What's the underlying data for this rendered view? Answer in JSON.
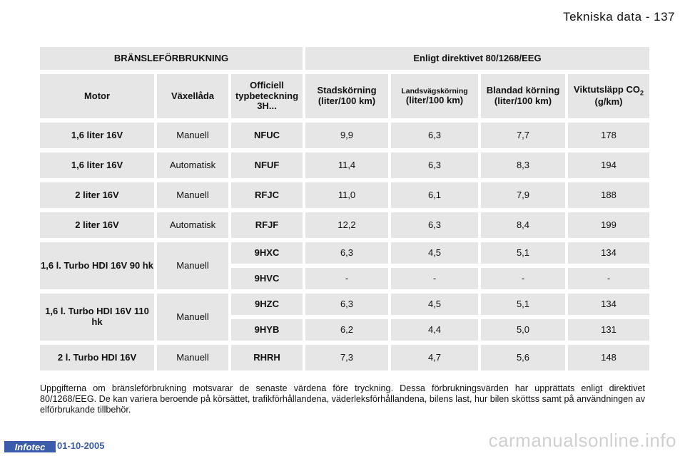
{
  "header": {
    "title": "Tekniska data - 137"
  },
  "table": {
    "top_headers": [
      "BRÄNSLEFÖRBRUKNING",
      "Enligt direktivet 80/1268/EEG"
    ],
    "col_headers": {
      "motor": "Motor",
      "gearbox": "Växellåda",
      "type_code": "Officiell typbeteckning 3H...",
      "city": "Stadskörning (liter/100 km)",
      "highway_a": "Landsvägskörning",
      "highway_b": "(liter/100 km)",
      "mixed": "Blandad körning (liter/100 km)",
      "co2_a": "Viktutsläpp CO",
      "co2_sub": "2",
      "co2_b": "(g/km)"
    },
    "rows": [
      {
        "motor": "1,6 liter 16V",
        "gearbox": "Manuell",
        "code": "NFUC",
        "city": "9,9",
        "highway": "6,3",
        "mixed": "7,7",
        "co2": "178"
      },
      {
        "motor": "1,6 liter 16V",
        "gearbox": "Automatisk",
        "code": "NFUF",
        "city": "11,4",
        "highway": "6,3",
        "mixed": "8,3",
        "co2": "194"
      },
      {
        "motor": "2 liter 16V",
        "gearbox": "Manuell",
        "code": "RFJC",
        "city": "11,0",
        "highway": "6,1",
        "mixed": "7,9",
        "co2": "188"
      },
      {
        "motor": "2 liter 16V",
        "gearbox": "Automatisk",
        "code": "RFJF",
        "city": "12,2",
        "highway": "6,3",
        "mixed": "8,4",
        "co2": "199"
      },
      {
        "motor": "1,6 l. Turbo HDI 16V 90 hk",
        "gearbox": "Manuell",
        "code": "9HXC",
        "city": "6,3",
        "highway": "4,5",
        "mixed": "5,1",
        "co2": "134"
      },
      {
        "code": "9HVC",
        "city": "-",
        "highway": "-",
        "mixed": "-",
        "co2": "-"
      },
      {
        "motor": "1,6 l. Turbo HDI 16V 110 hk",
        "gearbox": "Manuell",
        "code": "9HZC",
        "city": "6,3",
        "highway": "4,5",
        "mixed": "5,1",
        "co2": "134"
      },
      {
        "code": "9HYB",
        "city": "6,2",
        "highway": "4,4",
        "mixed": "5,0",
        "co2": "131"
      },
      {
        "motor": "2 l. Turbo HDI 16V",
        "gearbox": "Manuell",
        "code": "RHRH",
        "city": "7,3",
        "highway": "4,7",
        "mixed": "5,6",
        "co2": "148"
      }
    ]
  },
  "note": "Uppgifterna om bränsleförbrukning motsvarar de senaste värdena före tryckning. Dessa förbrukningsvärden har upprättats enligt direktivet 80/1268/EEG. De kan variera beroende på körsättet, trafikförhållandena, väderleksförhållandena, bilens last, hur bilen sköttss samt på användningen av elförbrukande tillbehör.",
  "footer": {
    "logo": "Infotec",
    "date": "01-10-2005"
  },
  "watermark": "carmanualsonline.info"
}
